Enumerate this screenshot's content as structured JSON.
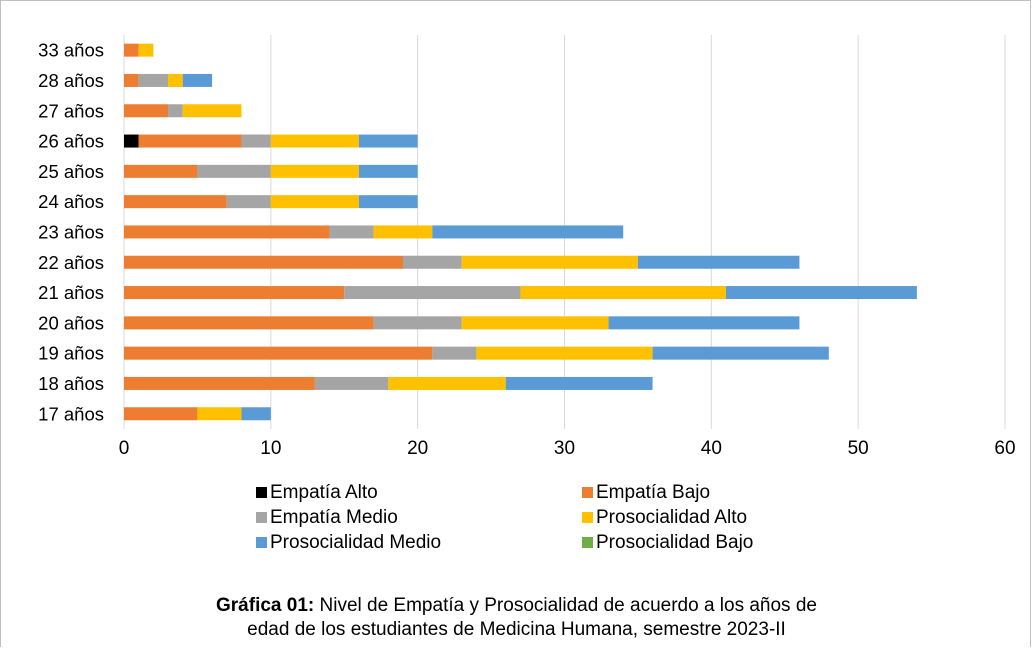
{
  "chart_data": {
    "type": "bar",
    "orientation": "horizontal",
    "stacked": true,
    "categories": [
      "33 años",
      "28 años",
      "27 años",
      "26 años",
      "25 años",
      "24 años",
      "23 años",
      "22 años",
      "21 años",
      "20 años",
      "19 años",
      "18 años",
      "17 años"
    ],
    "series": [
      {
        "name": "Empatía Alto",
        "color": "#000000",
        "values": [
          0,
          0,
          0,
          1,
          0,
          0,
          0,
          0,
          0,
          0,
          0,
          0,
          0
        ]
      },
      {
        "name": "Empatía Bajo",
        "color": "#ED7D31",
        "values": [
          1,
          1,
          3,
          7,
          5,
          7,
          14,
          19,
          15,
          17,
          21,
          13,
          5
        ]
      },
      {
        "name": "Empatía Medio",
        "color": "#A5A5A5",
        "values": [
          0,
          2,
          1,
          2,
          5,
          3,
          3,
          4,
          12,
          6,
          3,
          5,
          0
        ]
      },
      {
        "name": "Prosocialidad Alto",
        "color": "#FFC000",
        "values": [
          1,
          1,
          4,
          6,
          6,
          6,
          4,
          12,
          14,
          10,
          12,
          8,
          3
        ]
      },
      {
        "name": "Prosocialidad Medio",
        "color": "#5B9BD5",
        "values": [
          0,
          2,
          0,
          4,
          4,
          4,
          13,
          11,
          13,
          13,
          12,
          10,
          2
        ]
      },
      {
        "name": "Prosocialidad Bajo",
        "color": "#70AD47",
        "values": [
          0,
          0,
          0,
          0,
          0,
          0,
          0,
          0,
          0,
          0,
          0,
          0,
          0
        ]
      }
    ],
    "xlim": [
      0,
      60
    ],
    "x_ticks": [
      "0",
      "10",
      "20",
      "30",
      "40",
      "50",
      "60"
    ],
    "grid": true,
    "legend_position": "bottom",
    "gridline_color": "#d9d9d9"
  },
  "caption": {
    "bold": "Gráfica 01:",
    "line1": " Nivel de Empatía y Prosocialidad de acuerdo a los años de",
    "line2": "edad de los estudiantes de Medicina Humana, semestre 2023-II"
  }
}
